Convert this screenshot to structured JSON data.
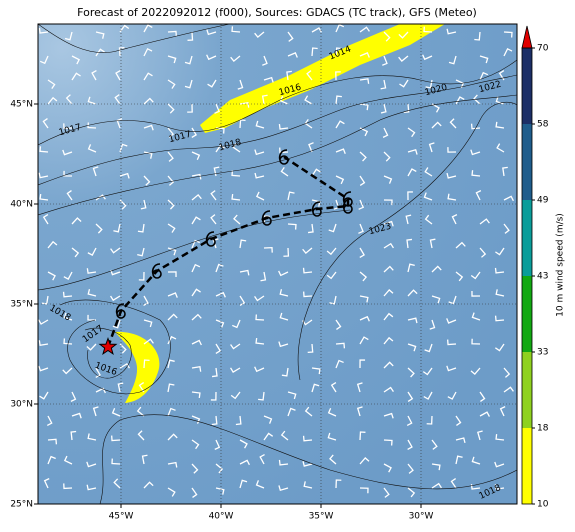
{
  "chart_data": {
    "type": "map",
    "title": "Forecast of 2022092012 (f000), Sources: GDACS (TC track), GFS (Meteo)",
    "xlim": [
      -49.15,
      -25.2
    ],
    "ylim": [
      25,
      49
    ],
    "xticks": [
      {
        "value": -45,
        "label": "45°W"
      },
      {
        "value": -40,
        "label": "40°W"
      },
      {
        "value": -35,
        "label": "35°W"
      },
      {
        "value": -30,
        "label": "30°W"
      }
    ],
    "yticks": [
      {
        "value": 25,
        "label": "25°N"
      },
      {
        "value": 30,
        "label": "30°N"
      },
      {
        "value": 35,
        "label": "35°N"
      },
      {
        "value": 40,
        "label": "40°N"
      },
      {
        "value": 45,
        "label": "45°N"
      }
    ],
    "grid": true,
    "colorbar": {
      "label": "10 m wind speed (m/s)",
      "ticks": [
        10,
        18,
        33,
        43,
        49,
        58,
        70
      ],
      "colors": [
        "#ffff00",
        "#8fd11f",
        "#13a813",
        "#0a9d9a",
        "#1f5d8c",
        "#1c2f66"
      ],
      "extend_color": "#e00000"
    },
    "track": {
      "lon": [
        -45.65,
        -45.0,
        -43.2,
        -40.5,
        -37.7,
        -35.2,
        -33.65,
        -33.65,
        -36.85
      ],
      "lat": [
        32.85,
        34.65,
        36.65,
        38.25,
        39.3,
        39.75,
        39.9,
        40.25,
        42.35
      ]
    },
    "contour_labels": [
      "1014",
      "1016",
      "1017",
      "1017",
      "1018",
      "1020",
      "1022",
      "1023",
      "1018",
      "1017",
      "1016",
      "1018"
    ]
  }
}
